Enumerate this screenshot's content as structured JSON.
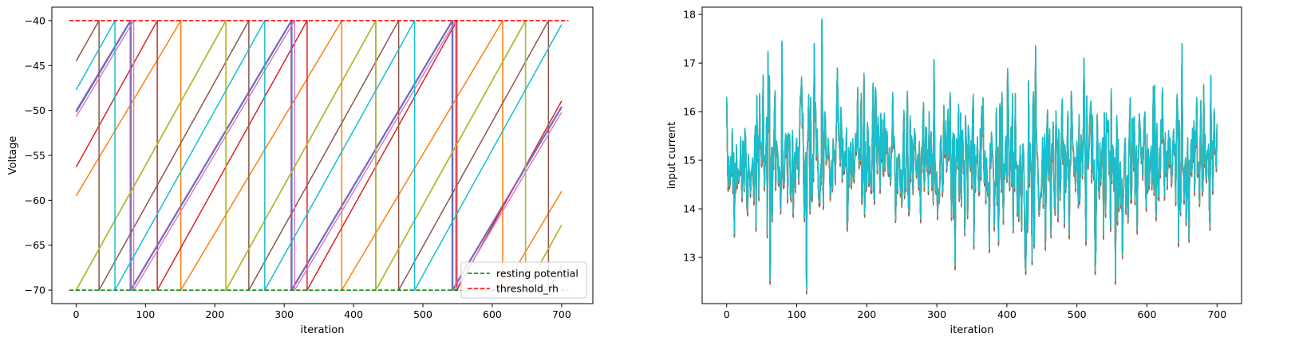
{
  "chart_data": [
    {
      "type": "line",
      "title": "",
      "xlabel": "iteration",
      "ylabel": "Voltage",
      "xlim": [
        -35,
        745
      ],
      "ylim": [
        -71.5,
        -38.5
      ],
      "xticks": [
        0,
        100,
        200,
        300,
        400,
        500,
        600,
        700
      ],
      "yticks": [
        -70,
        -65,
        -60,
        -55,
        -50,
        -45,
        -40
      ],
      "grid": false,
      "legend_position": "bottom-right",
      "model": {
        "resting_potential": -70,
        "threshold": -40,
        "iterations": 700
      },
      "reference_lines": [
        {
          "name": "resting potential",
          "y": -70,
          "x": [
            -10,
            710
          ],
          "color": "#008000",
          "dash": true
        },
        {
          "name": "threshold_rh",
          "y": -40,
          "x": [
            -10,
            710
          ],
          "color": "#ff0000",
          "dash": true
        }
      ],
      "series": [
        {
          "color": "#1f77b4",
          "start": -50.2,
          "slope": 0.1295
        },
        {
          "color": "#ff7f0e",
          "start": -59.5,
          "slope": 0.1295
        },
        {
          "color": "#2ca02c",
          "start": -70.0,
          "slope": 0.1395
        },
        {
          "color": "#d62728",
          "start": -56.3,
          "slope": 0.1395
        },
        {
          "color": "#9467bd",
          "start": -50.0,
          "slope": 0.1295
        },
        {
          "color": "#8c564b",
          "start": -44.5,
          "slope": 0.1395
        },
        {
          "color": "#e377c2",
          "start": -50.7,
          "slope": 0.1295
        },
        {
          "color": "#7f7f7f",
          "start": -70.0,
          "slope": 0.1395
        },
        {
          "color": "#bcbd22",
          "start": -70.0,
          "slope": 0.1395
        },
        {
          "color": "#17becf",
          "start": -47.7,
          "slope": 0.1395
        }
      ]
    },
    {
      "type": "line",
      "title": "",
      "xlabel": "iteration",
      "ylabel": "input current",
      "xlim": [
        -35,
        735
      ],
      "ylim": [
        12.05,
        18.15
      ],
      "xticks": [
        0,
        100,
        200,
        300,
        400,
        500,
        600,
        700
      ],
      "yticks": [
        13,
        14,
        15,
        16,
        17,
        18
      ],
      "grid": false,
      "signal": {
        "iterations": 700,
        "mean": 15.0,
        "std": 0.75,
        "min": 12.3,
        "max": 17.85,
        "seed": 7,
        "colors": [
          "#1f77b4",
          "#ff7f0e",
          "#2ca02c",
          "#d62728",
          "#9467bd",
          "#8c564b",
          "#e377c2",
          "#7f7f7f",
          "#bcbd22",
          "#17becf"
        ],
        "peaks": [
          {
            "x": 136,
            "y": 17.85
          },
          {
            "x": 114,
            "y": 12.3
          },
          {
            "x": 79,
            "y": 17.4
          },
          {
            "x": 62,
            "y": 12.5
          },
          {
            "x": 555,
            "y": 12.5
          },
          {
            "x": 326,
            "y": 12.8
          },
          {
            "x": 436,
            "y": 12.9
          },
          {
            "x": 510,
            "y": 17.05
          },
          {
            "x": 296,
            "y": 17.02
          },
          {
            "x": 0,
            "y": 16.25
          },
          {
            "x": 700,
            "y": 15.7
          }
        ]
      }
    }
  ]
}
